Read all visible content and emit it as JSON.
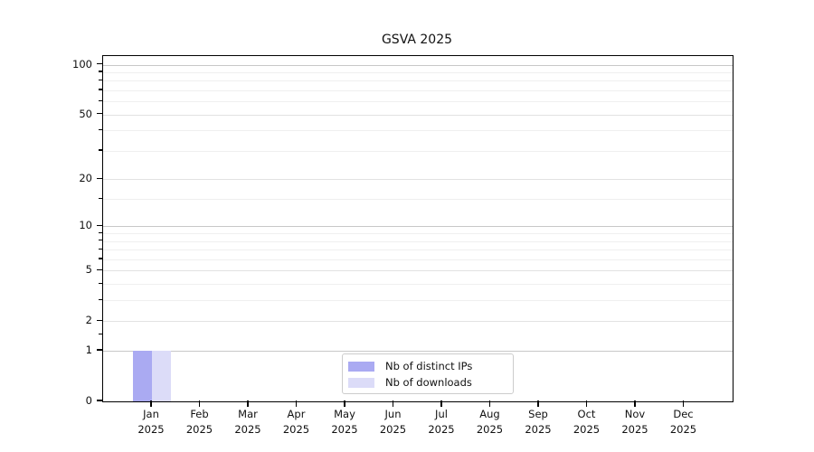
{
  "chart_data": {
    "type": "bar",
    "title": "GSVA 2025",
    "categories": [
      "Jan",
      "Feb",
      "Mar",
      "Apr",
      "May",
      "Jun",
      "Jul",
      "Aug",
      "Sep",
      "Oct",
      "Nov",
      "Dec"
    ],
    "category_year_label": "2025",
    "series": [
      {
        "name": "Nb of distinct IPs",
        "color": "#aaaaf2",
        "values": [
          1,
          0,
          0,
          0,
          0,
          0,
          0,
          0,
          0,
          0,
          0,
          0
        ]
      },
      {
        "name": "Nb of downloads",
        "color": "#dcdcf8",
        "values": [
          1,
          0,
          0,
          0,
          0,
          0,
          0,
          0,
          0,
          0,
          0,
          0
        ]
      }
    ],
    "y_axis": {
      "scale": "log1p",
      "major_ticks": [
        0,
        1,
        2,
        5,
        10,
        20,
        50,
        100
      ],
      "decade_ticks": [
        1,
        10,
        100
      ],
      "minor_ticks": [
        1.5,
        3,
        4,
        6,
        7,
        8,
        9,
        15,
        30,
        40,
        60,
        70,
        80,
        90
      ],
      "ylim": [
        0,
        112
      ]
    },
    "xlabel": "",
    "ylabel": "",
    "grid": {
      "major": true,
      "minor": true
    },
    "legend": {
      "position": "bottom-center"
    }
  },
  "colors": {
    "axis": "#000000",
    "grid_decade": "#c8c8c8",
    "grid_major": "#e2e2e2",
    "grid_minor": "#efefef",
    "background": "#ffffff"
  }
}
